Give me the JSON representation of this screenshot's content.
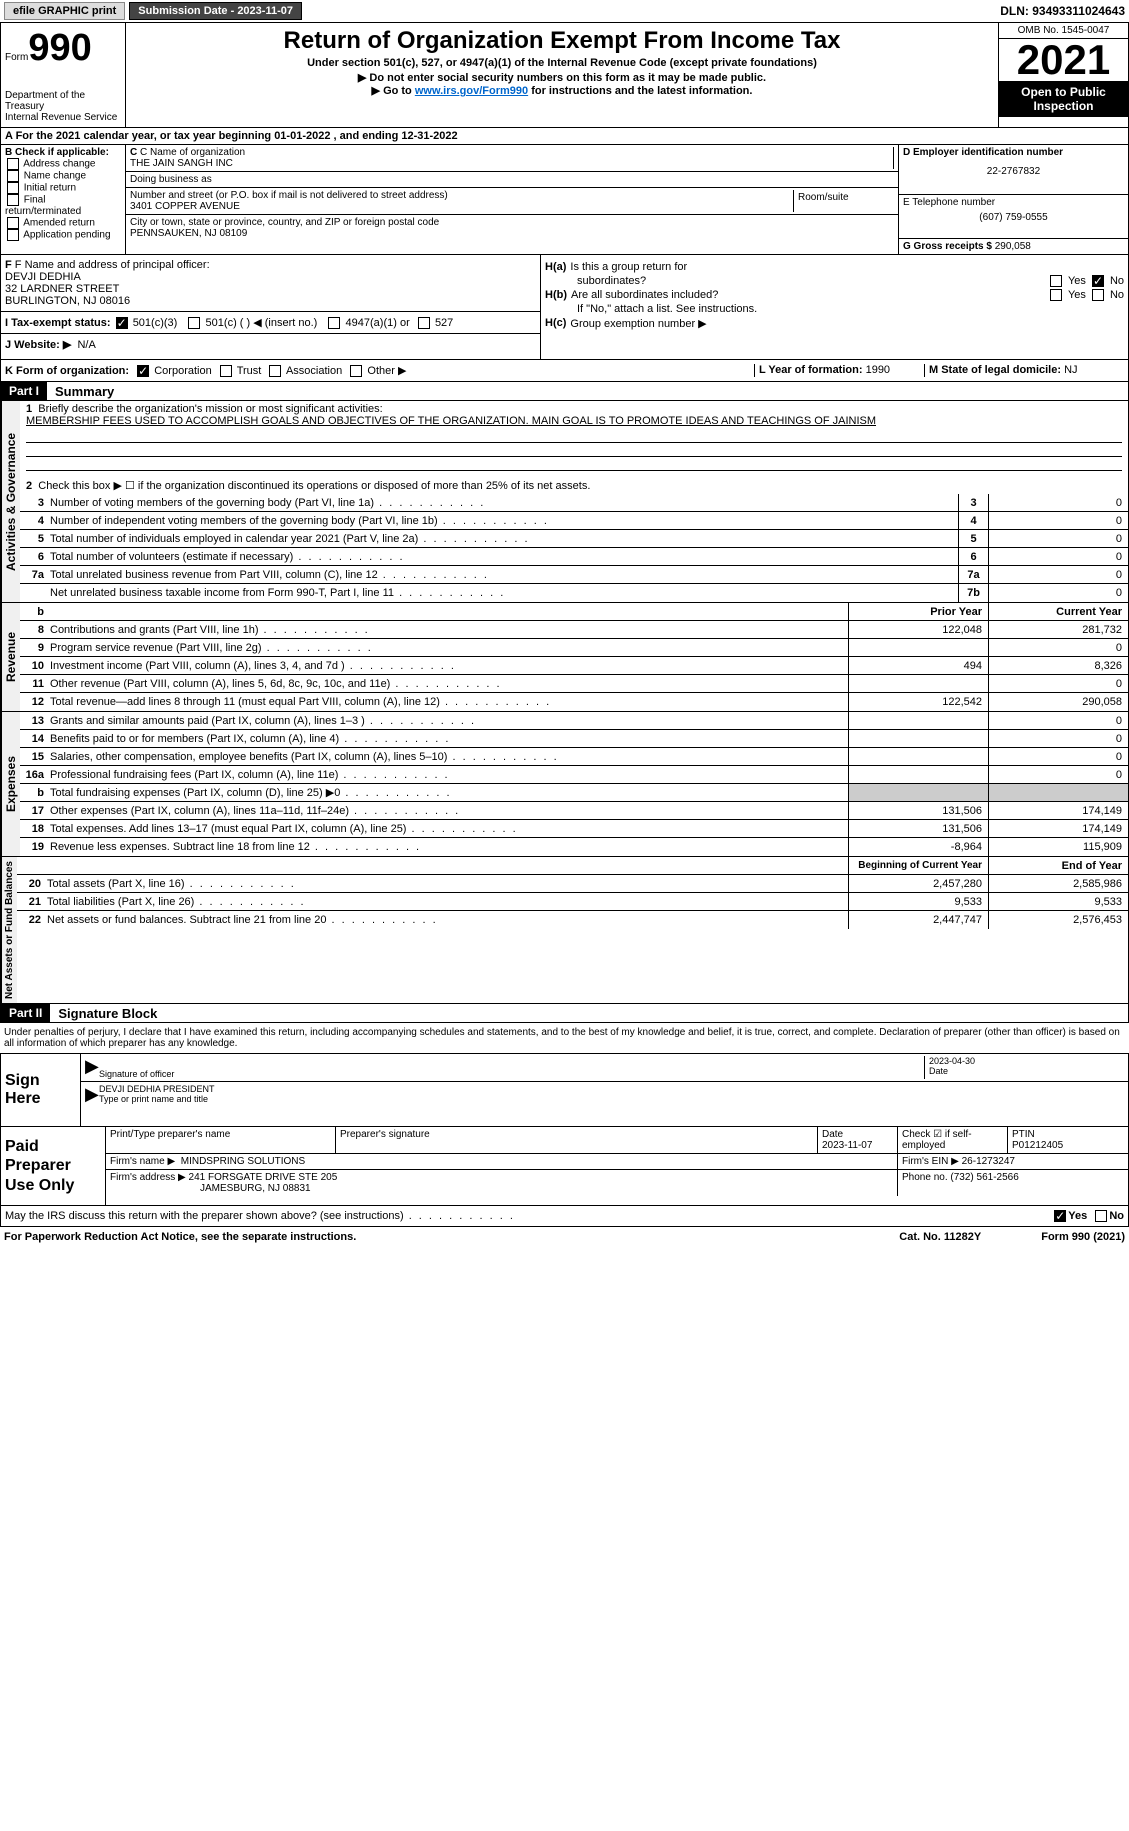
{
  "topbar": {
    "efile": "efile GRAPHIC print",
    "submission": "Submission Date - 2023-11-07",
    "dln": "DLN: 93493311024643"
  },
  "header": {
    "form_word": "Form",
    "form_num": "990",
    "dept": "Department of the Treasury",
    "irs": "Internal Revenue Service",
    "title": "Return of Organization Exempt From Income Tax",
    "sub1": "Under section 501(c), 527, or 4947(a)(1) of the Internal Revenue Code (except private foundations)",
    "sub2": "▶ Do not enter social security numbers on this form as it may be made public.",
    "sub3_pre": "▶ Go to ",
    "sub3_link": "www.irs.gov/Form990",
    "sub3_post": " for instructions and the latest information.",
    "omb": "OMB No. 1545-0047",
    "year": "2021",
    "inspect1": "Open to Public",
    "inspect2": "Inspection"
  },
  "row_a": "A For the 2021 calendar year, or tax year beginning 01-01-2022    , and ending 12-31-2022",
  "section_b": {
    "b_label": "B Check if applicable:",
    "b_opts": [
      "Address change",
      "Name change",
      "Initial return",
      "Final return/terminated",
      "Amended return",
      "Application pending"
    ],
    "c_name_label": "C Name of organization",
    "c_name": "THE JAIN SANGH INC",
    "dba_label": "Doing business as",
    "dba": "",
    "addr_label": "Number and street (or P.O. box if mail is not delivered to street address)",
    "room_label": "Room/suite",
    "addr": "3401 COPPER AVENUE",
    "city_label": "City or town, state or province, country, and ZIP or foreign postal code",
    "city": "PENNSAUKEN, NJ  08109",
    "d_label": "D Employer identification number",
    "d_val": "22-2767832",
    "e_label": "E Telephone number",
    "e_val": "(607) 759-0555",
    "g_label": "G Gross receipts $",
    "g_val": "290,058"
  },
  "section_f": {
    "f_label": "F Name and address of principal officer:",
    "f_name": "DEVJI DEDHIA",
    "f_addr1": "32 LARDNER STREET",
    "f_addr2": "BURLINGTON, NJ  08016",
    "i_label": "I Tax-exempt status:",
    "i_501c3": "501(c)(3)",
    "i_501c": "501(c) (  ) ◀ (insert no.)",
    "i_4947": "4947(a)(1) or",
    "i_527": "527",
    "j_label": "J   Website: ▶",
    "j_val": "N/A"
  },
  "section_h": {
    "ha_label": "Is this a group return for",
    "ha_label2": "subordinates?",
    "hb_label": "Are all subordinates included?",
    "hb_note": "If \"No,\" attach a list. See instructions.",
    "hc_label": "Group exemption number ▶",
    "yes": "Yes",
    "no": "No",
    "ha": "H(a)",
    "hb": "H(b)",
    "hc": "H(c)"
  },
  "row_k": {
    "k_label": "K Form of organization:",
    "k_corp": "Corporation",
    "k_trust": "Trust",
    "k_assoc": "Association",
    "k_other": "Other ▶",
    "l_label": "L Year of formation:",
    "l_val": "1990",
    "m_label": "M State of legal domicile:",
    "m_val": "NJ"
  },
  "part1": {
    "num": "Part I",
    "title": "Summary",
    "side1": "Activities & Governance",
    "side2": "Revenue",
    "side3": "Expenses",
    "side4": "Net Assets or Fund Balances",
    "l1_label": "Briefly describe the organization's mission or most significant activities:",
    "l1_text": "MEMBERSHIP FEES USED TO ACCOMPLISH GOALS AND OBJECTIVES OF THE ORGANIZATION. MAIN GOAL IS TO PROMOTE IDEAS AND TEACHINGS OF JAINISM",
    "l2": "Check this box ▶ ☐ if the organization discontinued its operations or disposed of more than 25% of its net assets.",
    "lines_gov": [
      {
        "n": "3",
        "t": "Number of voting members of the governing body (Part VI, line 1a)",
        "b": "3",
        "v": "0"
      },
      {
        "n": "4",
        "t": "Number of independent voting members of the governing body (Part VI, line 1b)",
        "b": "4",
        "v": "0"
      },
      {
        "n": "5",
        "t": "Total number of individuals employed in calendar year 2021 (Part V, line 2a)",
        "b": "5",
        "v": "0"
      },
      {
        "n": "6",
        "t": "Total number of volunteers (estimate if necessary)",
        "b": "6",
        "v": "0"
      },
      {
        "n": "7a",
        "t": "Total unrelated business revenue from Part VIII, column (C), line 12",
        "b": "7a",
        "v": "0"
      },
      {
        "n": "",
        "t": "Net unrelated business taxable income from Form 990-T, Part I, line 11",
        "b": "7b",
        "v": "0"
      }
    ],
    "col_prior": "Prior Year",
    "col_current": "Current Year",
    "lines_rev": [
      {
        "n": "8",
        "t": "Contributions and grants (Part VIII, line 1h)",
        "p": "122,048",
        "c": "281,732"
      },
      {
        "n": "9",
        "t": "Program service revenue (Part VIII, line 2g)",
        "p": "",
        "c": "0"
      },
      {
        "n": "10",
        "t": "Investment income (Part VIII, column (A), lines 3, 4, and 7d )",
        "p": "494",
        "c": "8,326"
      },
      {
        "n": "11",
        "t": "Other revenue (Part VIII, column (A), lines 5, 6d, 8c, 9c, 10c, and 11e)",
        "p": "",
        "c": "0"
      },
      {
        "n": "12",
        "t": "Total revenue—add lines 8 through 11 (must equal Part VIII, column (A), line 12)",
        "p": "122,542",
        "c": "290,058"
      }
    ],
    "lines_exp": [
      {
        "n": "13",
        "t": "Grants and similar amounts paid (Part IX, column (A), lines 1–3 )",
        "p": "",
        "c": "0"
      },
      {
        "n": "14",
        "t": "Benefits paid to or for members (Part IX, column (A), line 4)",
        "p": "",
        "c": "0"
      },
      {
        "n": "15",
        "t": "Salaries, other compensation, employee benefits (Part IX, column (A), lines 5–10)",
        "p": "",
        "c": "0"
      },
      {
        "n": "16a",
        "t": "Professional fundraising fees (Part IX, column (A), line 11e)",
        "p": "",
        "c": "0"
      },
      {
        "n": "b",
        "t": "Total fundraising expenses (Part IX, column (D), line 25) ▶0",
        "p": "GRAY",
        "c": "GRAY"
      },
      {
        "n": "17",
        "t": "Other expenses (Part IX, column (A), lines 11a–11d, 11f–24e)",
        "p": "131,506",
        "c": "174,149"
      },
      {
        "n": "18",
        "t": "Total expenses. Add lines 13–17 (must equal Part IX, column (A), line 25)",
        "p": "131,506",
        "c": "174,149"
      },
      {
        "n": "19",
        "t": "Revenue less expenses. Subtract line 18 from line 12",
        "p": "-8,964",
        "c": "115,909"
      }
    ],
    "col_begin": "Beginning of Current Year",
    "col_end": "End of Year",
    "lines_net": [
      {
        "n": "20",
        "t": "Total assets (Part X, line 16)",
        "p": "2,457,280",
        "c": "2,585,986"
      },
      {
        "n": "21",
        "t": "Total liabilities (Part X, line 26)",
        "p": "9,533",
        "c": "9,533"
      },
      {
        "n": "22",
        "t": "Net assets or fund balances. Subtract line 21 from line 20",
        "p": "2,447,747",
        "c": "2,576,453"
      }
    ]
  },
  "part2": {
    "num": "Part II",
    "title": "Signature Block",
    "penalty": "Under penalties of perjury, I declare that I have examined this return, including accompanying schedules and statements, and to the best of my knowledge and belief, it is true, correct, and complete. Declaration of preparer (other than officer) is based on all information of which preparer has any knowledge.",
    "sign_here": "Sign Here",
    "sig_officer": "Signature of officer",
    "sig_date": "2023-04-30",
    "date_label": "Date",
    "officer_name": "DEVJI DEDHIA  PRESIDENT",
    "type_name": "Type or print name and title",
    "paid_prep": "Paid Preparer Use Only",
    "prep_name_label": "Print/Type preparer's name",
    "prep_sig_label": "Preparer's signature",
    "prep_date_label": "Date",
    "prep_date": "2023-11-07",
    "check_if": "Check ☑ if self-employed",
    "ptin_label": "PTIN",
    "ptin": "P01212405",
    "firm_name_label": "Firm's name    ▶",
    "firm_name": "MINDSPRING SOLUTIONS",
    "firm_ein_label": "Firm's EIN ▶",
    "firm_ein": "26-1273247",
    "firm_addr_label": "Firm's address ▶",
    "firm_addr1": "241 FORSGATE DRIVE STE 205",
    "firm_addr2": "JAMESBURG, NJ  08831",
    "phone_label": "Phone no.",
    "phone": "(732) 561-2566",
    "may_irs": "May the IRS discuss this return with the preparer shown above? (see instructions)",
    "yes": "Yes",
    "no": "No"
  },
  "footer": {
    "paperwork": "For Paperwork Reduction Act Notice, see the separate instructions.",
    "cat": "Cat. No. 11282Y",
    "form": "Form 990 (2021)"
  }
}
